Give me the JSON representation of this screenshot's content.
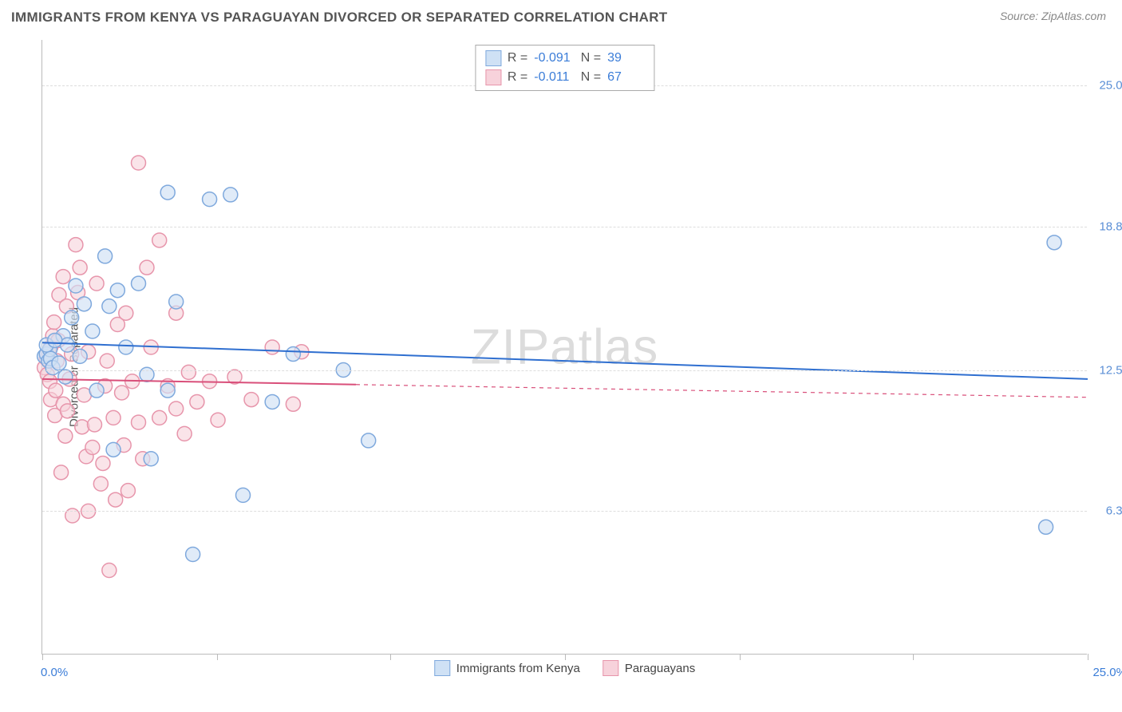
{
  "title": "IMMIGRANTS FROM KENYA VS PARAGUAYAN DIVORCED OR SEPARATED CORRELATION CHART",
  "source": "Source: ZipAtlas.com",
  "watermark": "ZIPatlas",
  "ylabel": "Divorced or Separated",
  "chart": {
    "type": "scatter",
    "xlim": [
      0,
      25
    ],
    "ylim": [
      0,
      27
    ],
    "background_color": "#ffffff",
    "grid_color": "#dddddd",
    "axis_color": "#bbbbbb",
    "ytick_values": [
      6.3,
      12.5,
      18.8,
      25.0
    ],
    "ytick_labels": [
      "6.3%",
      "12.5%",
      "18.8%",
      "25.0%"
    ],
    "ytick_color": "#5b8fd6",
    "xtick_positions": [
      0,
      4.17,
      8.33,
      12.5,
      16.67,
      20.83,
      25
    ],
    "x_left_label": "0.0%",
    "x_right_label": "25.0%",
    "x_label_color": "#3b7dd8",
    "marker_radius": 9,
    "marker_stroke_width": 1.5,
    "series": [
      {
        "name": "Immigrants from Kenya",
        "key": "kenya",
        "fill": "#cfe1f5",
        "stroke": "#7fa9dd",
        "fill_opacity": 0.65,
        "R": "-0.091",
        "N": "39",
        "regression": {
          "x1": 0,
          "y1": 13.7,
          "x2": 25,
          "y2": 12.1,
          "solid_to_x": 25,
          "color": "#2f6fd0",
          "width": 2
        },
        "points": [
          [
            0.05,
            13.1
          ],
          [
            0.1,
            13.2
          ],
          [
            0.15,
            12.9
          ],
          [
            0.18,
            13.4
          ],
          [
            0.2,
            13.0
          ],
          [
            0.25,
            12.6
          ],
          [
            0.1,
            13.6
          ],
          [
            0.4,
            12.8
          ],
          [
            0.5,
            14.0
          ],
          [
            0.55,
            12.2
          ],
          [
            0.6,
            13.6
          ],
          [
            0.7,
            14.8
          ],
          [
            0.8,
            16.2
          ],
          [
            0.9,
            13.1
          ],
          [
            1.0,
            15.4
          ],
          [
            1.2,
            14.2
          ],
          [
            1.3,
            11.6
          ],
          [
            1.5,
            17.5
          ],
          [
            1.6,
            15.3
          ],
          [
            1.7,
            9.0
          ],
          [
            1.8,
            16.0
          ],
          [
            2.0,
            13.5
          ],
          [
            2.3,
            16.3
          ],
          [
            2.5,
            12.3
          ],
          [
            2.6,
            8.6
          ],
          [
            3.0,
            20.3
          ],
          [
            3.0,
            11.6
          ],
          [
            3.2,
            15.5
          ],
          [
            3.6,
            4.4
          ],
          [
            4.0,
            20.0
          ],
          [
            4.5,
            20.2
          ],
          [
            4.8,
            7.0
          ],
          [
            5.5,
            11.1
          ],
          [
            6.0,
            13.2
          ],
          [
            7.2,
            12.5
          ],
          [
            7.8,
            9.4
          ],
          [
            24.2,
            18.1
          ],
          [
            24.0,
            5.6
          ],
          [
            0.3,
            13.8
          ]
        ]
      },
      {
        "name": "Paraguayans",
        "key": "para",
        "fill": "#f7d2db",
        "stroke": "#e795ab",
        "fill_opacity": 0.6,
        "R": "-0.011",
        "N": "67",
        "regression": {
          "x1": 0,
          "y1": 12.1,
          "x2": 25,
          "y2": 11.3,
          "solid_to_x": 7.5,
          "color": "#d94f7a",
          "width": 2
        },
        "points": [
          [
            0.05,
            12.6
          ],
          [
            0.1,
            13.0
          ],
          [
            0.12,
            12.3
          ],
          [
            0.15,
            13.3
          ],
          [
            0.18,
            12.0
          ],
          [
            0.2,
            13.5
          ],
          [
            0.2,
            11.2
          ],
          [
            0.25,
            14.0
          ],
          [
            0.28,
            14.6
          ],
          [
            0.3,
            10.5
          ],
          [
            0.32,
            11.6
          ],
          [
            0.35,
            12.9
          ],
          [
            0.38,
            13.8
          ],
          [
            0.4,
            15.8
          ],
          [
            0.45,
            8.0
          ],
          [
            0.5,
            16.6
          ],
          [
            0.5,
            11.0
          ],
          [
            0.55,
            9.6
          ],
          [
            0.58,
            15.3
          ],
          [
            0.6,
            10.7
          ],
          [
            0.65,
            12.1
          ],
          [
            0.7,
            13.2
          ],
          [
            0.72,
            6.1
          ],
          [
            0.8,
            18.0
          ],
          [
            0.85,
            15.9
          ],
          [
            0.9,
            17.0
          ],
          [
            0.95,
            10.0
          ],
          [
            1.0,
            11.4
          ],
          [
            1.05,
            8.7
          ],
          [
            1.1,
            13.3
          ],
          [
            1.1,
            6.3
          ],
          [
            1.2,
            9.1
          ],
          [
            1.25,
            10.1
          ],
          [
            1.3,
            16.3
          ],
          [
            1.4,
            7.5
          ],
          [
            1.45,
            8.4
          ],
          [
            1.5,
            11.8
          ],
          [
            1.55,
            12.9
          ],
          [
            1.6,
            3.7
          ],
          [
            1.7,
            10.4
          ],
          [
            1.75,
            6.8
          ],
          [
            1.8,
            14.5
          ],
          [
            1.9,
            11.5
          ],
          [
            1.95,
            9.2
          ],
          [
            2.0,
            15.0
          ],
          [
            2.05,
            7.2
          ],
          [
            2.15,
            12.0
          ],
          [
            2.3,
            21.6
          ],
          [
            2.3,
            10.2
          ],
          [
            2.4,
            8.6
          ],
          [
            2.5,
            17.0
          ],
          [
            2.6,
            13.5
          ],
          [
            2.8,
            10.4
          ],
          [
            2.8,
            18.2
          ],
          [
            3.0,
            11.8
          ],
          [
            3.2,
            10.8
          ],
          [
            3.2,
            15.0
          ],
          [
            3.4,
            9.7
          ],
          [
            3.5,
            12.4
          ],
          [
            3.7,
            11.1
          ],
          [
            4.0,
            12.0
          ],
          [
            4.2,
            10.3
          ],
          [
            4.6,
            12.2
          ],
          [
            5.0,
            11.2
          ],
          [
            5.5,
            13.5
          ],
          [
            6.2,
            13.3
          ],
          [
            6.0,
            11.0
          ]
        ]
      }
    ]
  },
  "legend_top": {
    "rows": [
      {
        "swatch_fill": "#cfe1f5",
        "swatch_stroke": "#7fa9dd",
        "R": "-0.091",
        "N": "39"
      },
      {
        "swatch_fill": "#f7d2db",
        "swatch_stroke": "#e795ab",
        "R": "-0.011",
        "N": "67"
      }
    ],
    "label_color": "#555555",
    "value_color": "#3b7dd8"
  },
  "legend_bottom": {
    "items": [
      {
        "swatch_fill": "#cfe1f5",
        "swatch_stroke": "#7fa9dd",
        "label": "Immigrants from Kenya"
      },
      {
        "swatch_fill": "#f7d2db",
        "swatch_stroke": "#e795ab",
        "label": "Paraguayans"
      }
    ]
  }
}
